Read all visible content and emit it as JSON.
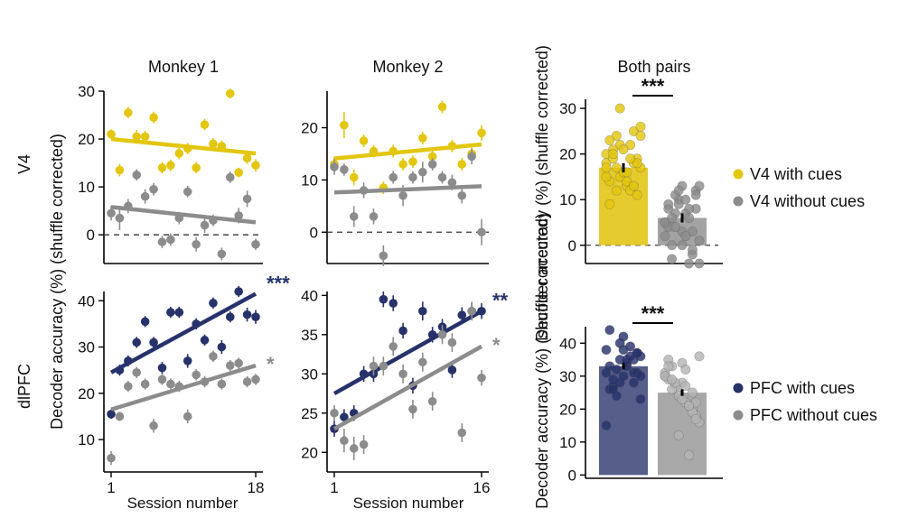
{
  "figure": {
    "ylabel": "Decoder accuracy (%) (shuffle corrected)",
    "xlabel": "Session number",
    "row_labels": [
      "V4",
      "dlPFC"
    ]
  },
  "colors": {
    "v4_cues": "#e3c60f",
    "v4_nocues": "#8c8c8c",
    "pfc_cues": "#27326b",
    "pfc_nocues": "#8c8c8c",
    "bar_v4_cues": "#e6cb2e",
    "bar_v4_nocues": "#a3a3a3",
    "bar_pfc_cues": "#565e8a",
    "bar_pfc_nocues": "#a8a8a8",
    "light_grey_pts": "#b3b3b3"
  },
  "chart_data": [
    {
      "id": "m1_v4",
      "type": "scatter",
      "title": "Monkey 1",
      "ylim": [
        -6,
        30
      ],
      "yticks": [
        0,
        10,
        20,
        30
      ],
      "xlim": [
        1,
        18
      ],
      "xticks": [],
      "zero_line": true,
      "series": [
        {
          "name": "V4 with cues",
          "color_key": "v4_cues",
          "x": [
            1,
            2,
            3,
            4,
            5,
            6,
            7,
            8,
            9,
            10,
            11,
            12,
            13,
            14,
            15,
            16,
            17,
            18
          ],
          "y": [
            21,
            13.5,
            25.5,
            20.5,
            20.5,
            24.5,
            14,
            14.5,
            17,
            18,
            14,
            23,
            19,
            18.5,
            29.5,
            13,
            16,
            14.5
          ],
          "err": [
            1,
            1.3,
            1.2,
            1.4,
            1.2,
            1.2,
            1.2,
            1.2,
            1.2,
            1.2,
            1.2,
            1.2,
            1.2,
            1.2,
            1,
            1,
            1.2,
            1.3
          ],
          "fit": [
            20,
            17
          ]
        },
        {
          "name": "V4 without cues",
          "color_key": "v4_nocues",
          "x": [
            1,
            2,
            3,
            4,
            5,
            6,
            7,
            8,
            9,
            10,
            11,
            12,
            13,
            14,
            15,
            16,
            17,
            18
          ],
          "y": [
            4.5,
            3.5,
            6,
            12.5,
            8,
            9.5,
            -1.5,
            -1,
            3.5,
            9,
            -2,
            2,
            3,
            -4,
            12,
            4,
            7.5,
            -2
          ],
          "err": [
            1.5,
            2.5,
            1.5,
            1.2,
            1.5,
            1.3,
            1.3,
            1.3,
            1.3,
            1.2,
            1.5,
            1.6,
            1.2,
            1.3,
            1.2,
            1.6,
            1.7,
            1.2
          ],
          "fit": [
            5.8,
            2.6
          ]
        }
      ],
      "stars": []
    },
    {
      "id": "m2_v4",
      "type": "scatter",
      "title": "Monkey 2",
      "ylim": [
        -6,
        27
      ],
      "yticks": [
        0,
        10,
        20
      ],
      "xlim": [
        1,
        16
      ],
      "xticks": [],
      "zero_line": true,
      "series": [
        {
          "name": "V4 with cues",
          "color_key": "v4_cues",
          "x": [
            1,
            2,
            3,
            4,
            5,
            6,
            7,
            8,
            9,
            10,
            11,
            12,
            13,
            14,
            15,
            16
          ],
          "y": [
            13,
            20.5,
            10.5,
            17.5,
            15.5,
            8.5,
            15.5,
            13,
            13.5,
            18,
            14.5,
            24,
            16.5,
            13,
            15,
            19
          ],
          "err": [
            1.5,
            2.5,
            1.5,
            1.2,
            1.2,
            1.2,
            1.2,
            1.2,
            1.2,
            1.2,
            1.3,
            1.2,
            1.2,
            1.2,
            1.2,
            1.5
          ],
          "fit": [
            14.1,
            16.8
          ]
        },
        {
          "name": "V4 without cues",
          "color_key": "v4_nocues",
          "x": [
            1,
            2,
            3,
            4,
            5,
            6,
            7,
            8,
            9,
            10,
            11,
            12,
            13,
            14,
            15,
            16
          ],
          "y": [
            12.5,
            12,
            3,
            8,
            3,
            -4.5,
            10.5,
            7,
            10.5,
            11.5,
            13,
            10.5,
            9.5,
            7,
            14.5,
            0
          ],
          "err": [
            1.5,
            1.2,
            2,
            1.5,
            1.5,
            2,
            1.2,
            2,
            1.2,
            2,
            1.2,
            1.2,
            1.5,
            1.5,
            1.5,
            2.5
          ],
          "fit": [
            7.6,
            8.8
          ]
        }
      ],
      "stars": []
    },
    {
      "id": "m1_pfc",
      "type": "scatter",
      "title": "",
      "ylim": [
        3,
        42
      ],
      "yticks": [
        10,
        20,
        30,
        40
      ],
      "xlim": [
        1,
        18
      ],
      "xticks": [
        "1",
        "18"
      ],
      "zero_line": false,
      "series": [
        {
          "name": "PFC with cues",
          "color_key": "pfc_cues",
          "x": [
            1,
            2,
            3,
            4,
            5,
            6,
            7,
            8,
            9,
            10,
            11,
            12,
            13,
            14,
            15,
            16,
            17,
            18
          ],
          "y": [
            15.5,
            25,
            27,
            31,
            35.5,
            31,
            25.5,
            37.5,
            37.5,
            27,
            35,
            31.5,
            39.5,
            30,
            36.5,
            42,
            37,
            36.5
          ],
          "err": [
            1,
            1.2,
            1.2,
            1.2,
            1.2,
            1.2,
            1.3,
            1.2,
            1.2,
            1.5,
            1.2,
            1.2,
            1.2,
            1.5,
            1.2,
            1.2,
            1.5,
            1.5
          ],
          "fit": [
            24.5,
            41.5
          ]
        },
        {
          "name": "PFC without cues",
          "color_key": "pfc_nocues",
          "x": [
            1,
            2,
            3,
            4,
            5,
            6,
            7,
            8,
            9,
            10,
            11,
            12,
            13,
            14,
            15,
            16,
            17,
            18
          ],
          "y": [
            6,
            15,
            21.5,
            24.5,
            22,
            13,
            23,
            22,
            21.5,
            15,
            24,
            22.5,
            28,
            22,
            26,
            26.5,
            22.5,
            23
          ],
          "err": [
            1.5,
            1,
            1.2,
            1.2,
            1.2,
            1.5,
            1.2,
            1.2,
            1.2,
            1.5,
            1.2,
            1.2,
            1.2,
            1.2,
            1.2,
            1.2,
            1.2,
            1.2
          ],
          "fit": [
            16.5,
            26
          ]
        }
      ],
      "stars": [
        {
          "text": "***",
          "color_key": "pfc_cues"
        },
        {
          "text": "*",
          "color_key": "pfc_nocues"
        }
      ]
    },
    {
      "id": "m2_pfc",
      "type": "scatter",
      "title": "",
      "ylim": [
        17.5,
        40.5
      ],
      "yticks": [
        20,
        25,
        30,
        35,
        40
      ],
      "xlim": [
        1,
        16
      ],
      "xticks": [
        "1",
        "16"
      ],
      "zero_line": false,
      "series": [
        {
          "name": "PFC with cues",
          "color_key": "pfc_cues",
          "x": [
            1,
            2,
            3,
            4,
            5,
            6,
            7,
            8,
            9,
            10,
            11,
            12,
            13,
            14,
            15,
            16
          ],
          "y": [
            23,
            24.5,
            25,
            30,
            30,
            39.5,
            39,
            35.5,
            28.5,
            38,
            35,
            36,
            30.5,
            37.5,
            38,
            38
          ],
          "err": [
            1,
            1,
            1,
            1,
            1,
            1,
            1,
            1,
            1,
            1.2,
            1,
            1,
            1,
            1,
            1,
            1
          ],
          "fit": [
            27.5,
            38
          ]
        },
        {
          "name": "PFC without cues",
          "color_key": "pfc_nocues",
          "x": [
            1,
            2,
            3,
            4,
            5,
            6,
            7,
            8,
            9,
            10,
            11,
            12,
            13,
            14,
            15,
            16
          ],
          "y": [
            25,
            21.5,
            20.5,
            21,
            31,
            31,
            33.5,
            30,
            25.5,
            31.5,
            26.5,
            35,
            34,
            22.5,
            38,
            29.5
          ],
          "err": [
            1,
            1.5,
            1.5,
            1.2,
            1.2,
            1.2,
            1.2,
            1.2,
            1.2,
            1.2,
            1.2,
            1.2,
            1.2,
            1.2,
            1.2,
            1
          ],
          "fit": [
            23,
            33.5
          ]
        }
      ],
      "stars": [
        {
          "text": "**",
          "color_key": "pfc_cues"
        },
        {
          "text": "*",
          "color_key": "pfc_nocues"
        }
      ]
    },
    {
      "id": "both_v4",
      "type": "bar",
      "title": "Both pairs",
      "ylim": [
        -4,
        32
      ],
      "yticks": [
        0,
        10,
        20,
        30
      ],
      "zero_line": true,
      "sig": "***",
      "categories": [
        "V4 with cues",
        "V4 without cues"
      ],
      "values": [
        17,
        6
      ],
      "sem": [
        1,
        1
      ],
      "points": [
        [
          18,
          22,
          25,
          14,
          16,
          19,
          21,
          13,
          17,
          24,
          12,
          20,
          15,
          18,
          23,
          16,
          11,
          19,
          14,
          26,
          17,
          22,
          15,
          30,
          13,
          9,
          21,
          18,
          20,
          16,
          24,
          12,
          19,
          17
        ],
        [
          5,
          10,
          -2,
          8,
          3,
          12,
          0,
          7,
          -4,
          11,
          6,
          2,
          9,
          -1,
          4,
          13,
          8,
          -3,
          10,
          1,
          7,
          -4,
          5,
          12,
          3,
          9,
          0,
          11,
          6,
          2,
          13,
          4,
          8
        ]
      ],
      "bar_color_keys": [
        "bar_v4_cues",
        "bar_v4_nocues"
      ],
      "point_color_keys": [
        "v4_cues",
        "v4_nocues"
      ]
    },
    {
      "id": "both_pfc",
      "type": "bar",
      "title": "",
      "ylim": [
        -1,
        45
      ],
      "yticks": [
        0,
        10,
        20,
        30,
        40
      ],
      "zero_line": false,
      "sig": "***",
      "categories": [
        "PFC with cues",
        "PFC without cues"
      ],
      "values": [
        33,
        25
      ],
      "sem": [
        1,
        1
      ],
      "points": [
        [
          38,
          35,
          31,
          26,
          42,
          37,
          29,
          33,
          36,
          24,
          39,
          31,
          28,
          35,
          44,
          30,
          37,
          27,
          34,
          23,
          32,
          36,
          15,
          40,
          28,
          33,
          38,
          31,
          26,
          35,
          30
        ],
        [
          30,
          25,
          20,
          35,
          28,
          18,
          33,
          22,
          36,
          27,
          6,
          31,
          24,
          19,
          29,
          34,
          22,
          26,
          32,
          16,
          28,
          21,
          30,
          12,
          25,
          33,
          23,
          17,
          29,
          27
        ]
      ],
      "bar_color_keys": [
        "bar_pfc_cues",
        "bar_pfc_nocues"
      ],
      "point_color_keys": [
        "pfc_cues",
        "light_grey_pts"
      ]
    }
  ],
  "legends": [
    {
      "items": [
        {
          "label": "V4 with cues",
          "color_key": "v4_cues"
        },
        {
          "label": "V4 without cues",
          "color_key": "v4_nocues"
        }
      ]
    },
    {
      "items": [
        {
          "label": "PFC with cues",
          "color_key": "pfc_cues"
        },
        {
          "label": "PFC without cues",
          "color_key": "pfc_nocues"
        }
      ]
    }
  ]
}
